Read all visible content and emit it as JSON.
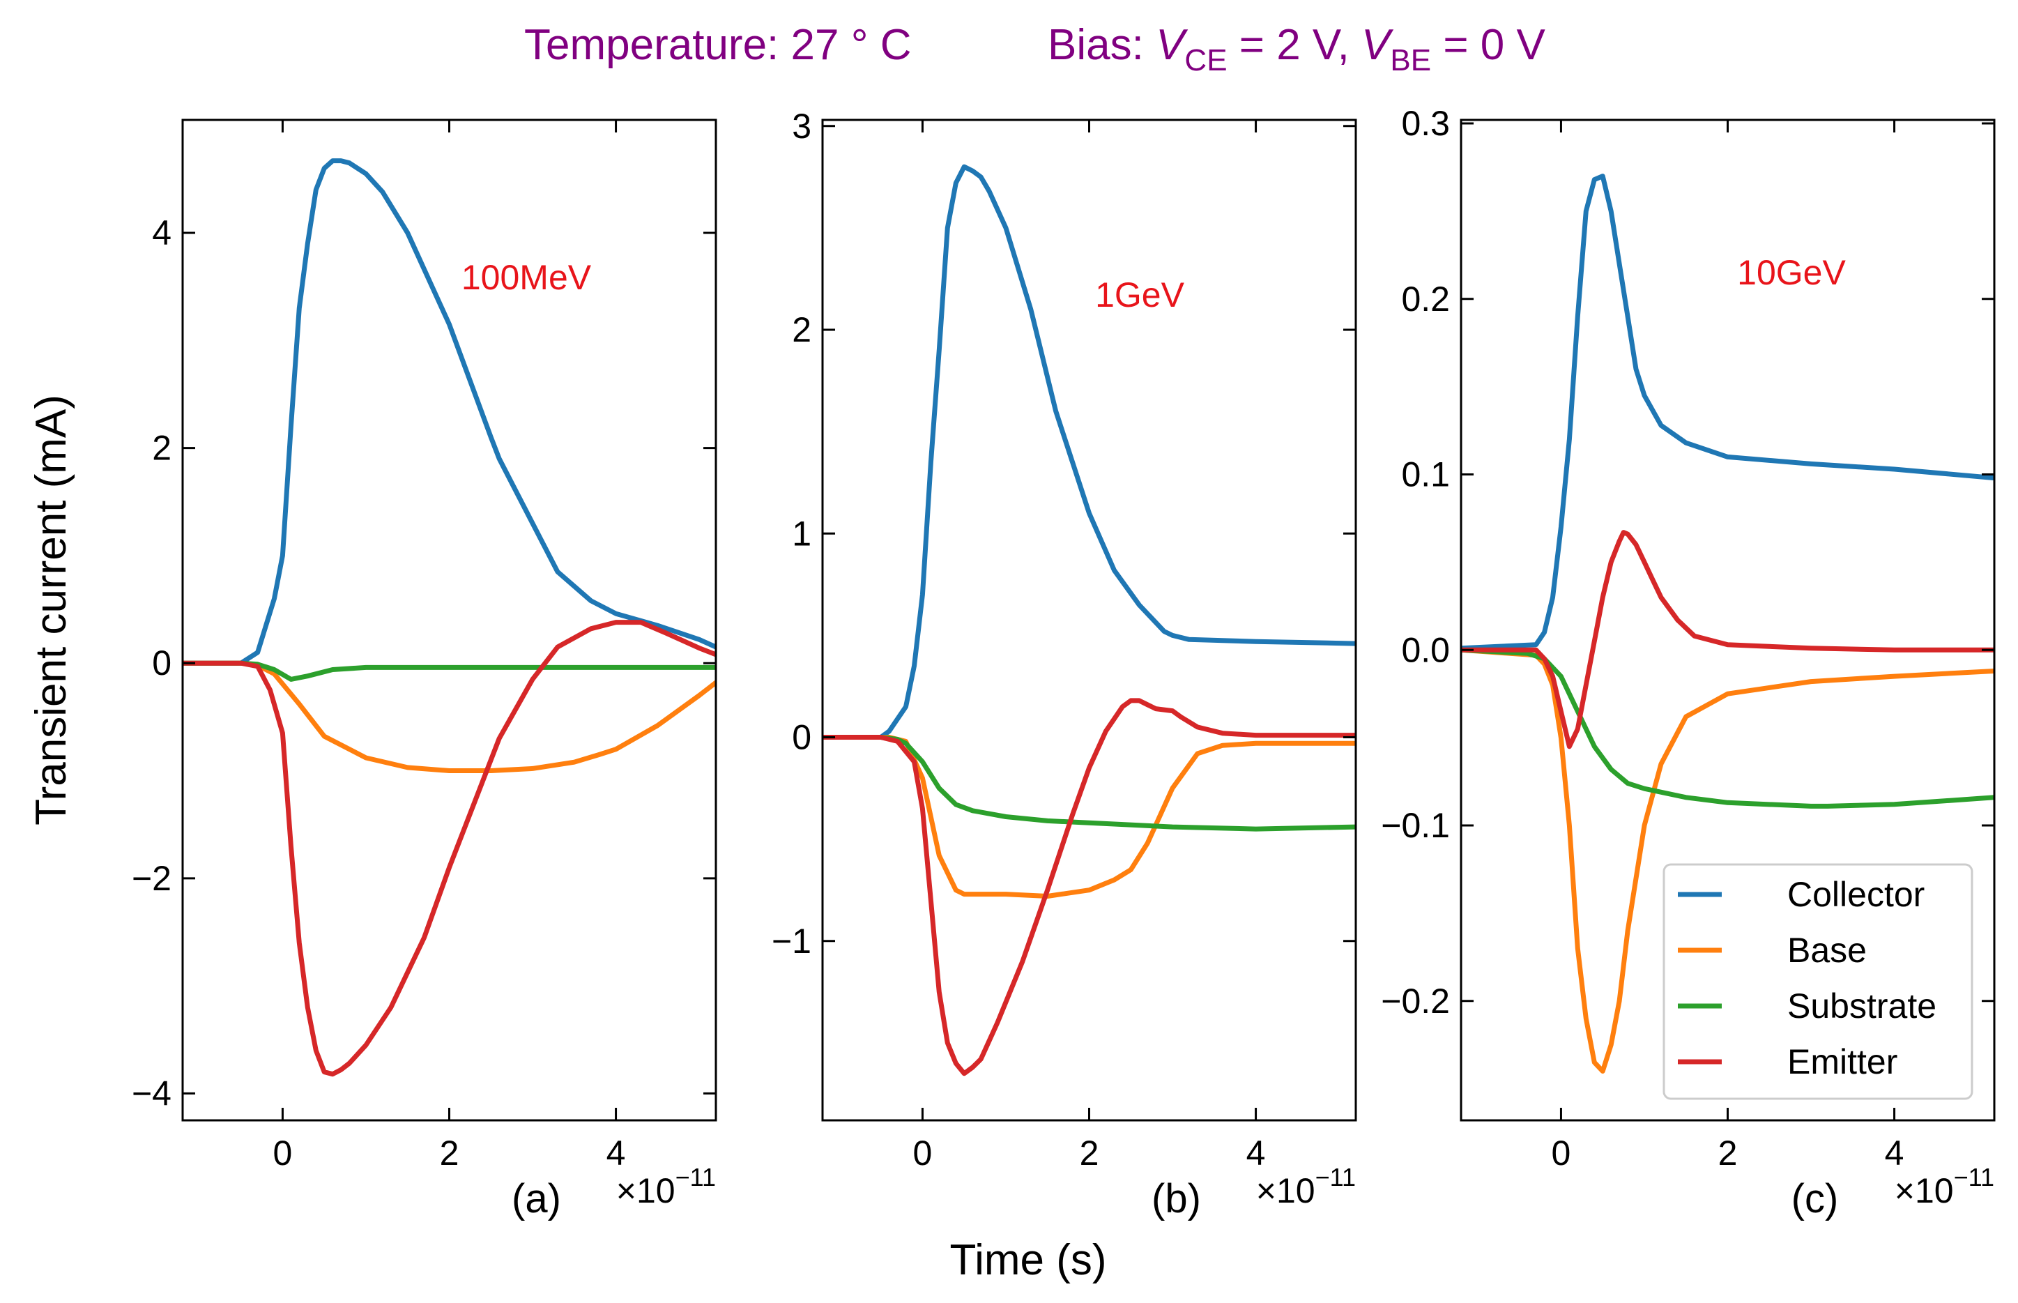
{
  "header": {
    "temp_label": "Temperature: 27 ° C",
    "bias_prefix": "Bias: ",
    "v1": "V",
    "v1_sub": "CE",
    "v1_rest": " = 2 V, ",
    "v2": "V",
    "v2_sub": "BE",
    "v2_rest": " = 0 V"
  },
  "colors": {
    "title": "#800080",
    "annotation": "#e8141a",
    "Collector": "#1f77b4",
    "Base": "#ff7f0e",
    "Substrate": "#2ca02c",
    "Emitter": "#d62728"
  },
  "ylabel": "Transient current (mA)",
  "xlabel": "Time (s)",
  "legend": {
    "entries": [
      "Collector",
      "Base",
      "Substrate",
      "Emitter"
    ]
  },
  "chart_data": [
    {
      "type": "line",
      "panel": "(a)",
      "annotation": "100MeV",
      "x_scale": "×10",
      "x_exp": "−11",
      "xlim": [
        -1.2,
        5.2
      ],
      "ylim": [
        -4.25,
        5.05
      ],
      "xticks": [
        0,
        2,
        4
      ],
      "xtick_labels": [
        "0",
        "2",
        "4"
      ],
      "yticks": [
        -4,
        -2,
        0,
        2,
        4
      ],
      "ytick_labels": [
        "−4",
        "−2",
        "0",
        "2",
        "4"
      ],
      "series": [
        {
          "name": "Collector",
          "x": [
            -1.2,
            -0.5,
            -0.3,
            -0.1,
            0,
            0.1,
            0.2,
            0.3,
            0.4,
            0.5,
            0.6,
            0.7,
            0.8,
            1.0,
            1.2,
            1.5,
            2.0,
            2.5,
            2.6,
            3.0,
            3.3,
            3.7,
            4.0,
            4.5,
            5.0,
            5.2
          ],
          "y": [
            0,
            0,
            0.1,
            0.6,
            1.0,
            2.2,
            3.3,
            3.9,
            4.4,
            4.6,
            4.67,
            4.67,
            4.65,
            4.55,
            4.38,
            4.0,
            3.15,
            2.1,
            1.9,
            1.3,
            0.85,
            0.58,
            0.46,
            0.35,
            0.22,
            0.15
          ]
        },
        {
          "name": "Base",
          "x": [
            -1.2,
            -0.5,
            -0.3,
            -0.1,
            0.2,
            0.5,
            1.0,
            1.5,
            2.0,
            2.5,
            3.0,
            3.5,
            3.8,
            4.0,
            4.5,
            5.0,
            5.2
          ],
          "y": [
            0,
            0,
            -0.02,
            -0.1,
            -0.38,
            -0.68,
            -0.88,
            -0.97,
            -1.0,
            -1.0,
            -0.98,
            -0.92,
            -0.85,
            -0.8,
            -0.58,
            -0.3,
            -0.18
          ]
        },
        {
          "name": "Substrate",
          "x": [
            -1.2,
            -0.5,
            -0.3,
            -0.1,
            0.1,
            0.3,
            0.6,
            1.0,
            2.0,
            3.0,
            4.0,
            5.2
          ],
          "y": [
            0,
            0,
            -0.01,
            -0.06,
            -0.15,
            -0.12,
            -0.06,
            -0.04,
            -0.04,
            -0.04,
            -0.04,
            -0.04
          ]
        },
        {
          "name": "Emitter",
          "x": [
            -1.2,
            -0.5,
            -0.3,
            -0.15,
            0,
            0.1,
            0.2,
            0.3,
            0.4,
            0.5,
            0.6,
            0.7,
            0.8,
            1.0,
            1.3,
            1.7,
            2.0,
            2.6,
            3.0,
            3.3,
            3.7,
            4.0,
            4.3,
            4.6,
            5.0,
            5.2
          ],
          "y": [
            0,
            0,
            -0.03,
            -0.25,
            -0.65,
            -1.7,
            -2.6,
            -3.2,
            -3.6,
            -3.8,
            -3.82,
            -3.78,
            -3.72,
            -3.55,
            -3.2,
            -2.55,
            -1.9,
            -0.7,
            -0.15,
            0.15,
            0.32,
            0.38,
            0.38,
            0.28,
            0.14,
            0.08
          ]
        }
      ]
    },
    {
      "type": "line",
      "panel": "(b)",
      "annotation": "1GeV",
      "x_scale": "×10",
      "x_exp": "−11",
      "xlim": [
        -1.2,
        5.2
      ],
      "ylim": [
        -1.88,
        3.03
      ],
      "xticks": [
        0,
        2,
        4
      ],
      "xtick_labels": [
        "0",
        "2",
        "4"
      ],
      "yticks": [
        -1,
        0,
        1,
        2,
        3
      ],
      "ytick_labels": [
        "−1",
        "0",
        "1",
        "2",
        "3"
      ],
      "series": [
        {
          "name": "Collector",
          "x": [
            -1.2,
            -0.5,
            -0.4,
            -0.2,
            -0.1,
            0,
            0.1,
            0.2,
            0.3,
            0.4,
            0.5,
            0.6,
            0.7,
            0.8,
            1.0,
            1.3,
            1.6,
            2.0,
            2.3,
            2.6,
            2.9,
            3.0,
            3.2,
            4.0,
            5.2
          ],
          "y": [
            0,
            0,
            0.03,
            0.15,
            0.35,
            0.7,
            1.35,
            1.9,
            2.5,
            2.72,
            2.8,
            2.78,
            2.75,
            2.68,
            2.5,
            2.1,
            1.6,
            1.1,
            0.82,
            0.65,
            0.52,
            0.5,
            0.48,
            0.47,
            0.46
          ]
        },
        {
          "name": "Base",
          "x": [
            -1.2,
            -0.4,
            -0.2,
            0,
            0.2,
            0.4,
            0.5,
            0.7,
            1.0,
            1.5,
            2.0,
            2.3,
            2.5,
            2.7,
            3.0,
            3.3,
            3.6,
            4.0,
            5.2
          ],
          "y": [
            0,
            0,
            -0.02,
            -0.2,
            -0.58,
            -0.75,
            -0.77,
            -0.77,
            -0.77,
            -0.78,
            -0.75,
            -0.7,
            -0.65,
            -0.52,
            -0.25,
            -0.08,
            -0.04,
            -0.03,
            -0.03
          ]
        },
        {
          "name": "Substrate",
          "x": [
            -1.2,
            -0.5,
            -0.3,
            -0.2,
            0,
            0.2,
            0.4,
            0.6,
            1.0,
            1.5,
            2.0,
            3.0,
            4.0,
            5.2
          ],
          "y": [
            0,
            0,
            -0.01,
            -0.03,
            -0.12,
            -0.25,
            -0.33,
            -0.36,
            -0.39,
            -0.41,
            -0.42,
            -0.44,
            -0.45,
            -0.44
          ]
        },
        {
          "name": "Emitter",
          "x": [
            -1.2,
            -0.5,
            -0.3,
            -0.1,
            0,
            0.1,
            0.2,
            0.3,
            0.4,
            0.5,
            0.6,
            0.7,
            0.9,
            1.2,
            1.5,
            1.8,
            2.0,
            2.2,
            2.4,
            2.5,
            2.6,
            2.7,
            2.8,
            3.0,
            3.1,
            3.3,
            3.6,
            4.0,
            5.2
          ],
          "y": [
            0,
            0,
            -0.02,
            -0.12,
            -0.35,
            -0.8,
            -1.25,
            -1.5,
            -1.6,
            -1.65,
            -1.62,
            -1.58,
            -1.4,
            -1.1,
            -0.75,
            -0.38,
            -0.15,
            0.03,
            0.15,
            0.18,
            0.18,
            0.16,
            0.14,
            0.13,
            0.1,
            0.05,
            0.02,
            0.01,
            0.01
          ]
        }
      ]
    },
    {
      "type": "line",
      "panel": "(c)",
      "annotation": "10GeV",
      "x_scale": "×10",
      "x_exp": "−11",
      "xlim": [
        -1.2,
        5.2
      ],
      "ylim": [
        -0.268,
        0.302
      ],
      "xticks": [
        0,
        2,
        4
      ],
      "xtick_labels": [
        "0",
        "2",
        "4"
      ],
      "yticks": [
        -0.2,
        -0.1,
        0,
        0.1,
        0.2,
        0.3
      ],
      "ytick_labels": [
        "−0.2",
        "−0.1",
        "0.0",
        "0.1",
        "0.2",
        "0.3"
      ],
      "series": [
        {
          "name": "Collector",
          "x": [
            -1.2,
            -0.3,
            -0.2,
            -0.1,
            0,
            0.1,
            0.2,
            0.3,
            0.4,
            0.5,
            0.6,
            0.7,
            0.8,
            0.9,
            1.0,
            1.2,
            1.5,
            2.0,
            3.0,
            4.0,
            5.2
          ],
          "y": [
            0.001,
            0.003,
            0.01,
            0.03,
            0.07,
            0.12,
            0.19,
            0.25,
            0.268,
            0.27,
            0.25,
            0.22,
            0.19,
            0.16,
            0.145,
            0.128,
            0.118,
            0.11,
            0.106,
            0.103,
            0.098
          ]
        },
        {
          "name": "Base",
          "x": [
            -1.2,
            -0.3,
            -0.2,
            -0.1,
            0,
            0.1,
            0.2,
            0.3,
            0.4,
            0.5,
            0.6,
            0.7,
            0.8,
            1.0,
            1.2,
            1.5,
            2.0,
            3.0,
            4.0,
            5.2
          ],
          "y": [
            0,
            -0.003,
            -0.008,
            -0.02,
            -0.05,
            -0.1,
            -0.17,
            -0.21,
            -0.235,
            -0.24,
            -0.225,
            -0.2,
            -0.16,
            -0.1,
            -0.065,
            -0.038,
            -0.025,
            -0.018,
            -0.015,
            -0.012
          ]
        },
        {
          "name": "Substrate",
          "x": [
            -1.2,
            -0.4,
            -0.2,
            0,
            0.2,
            0.4,
            0.6,
            0.8,
            1.0,
            1.5,
            2.0,
            3.0,
            3.2,
            4.0,
            5.2
          ],
          "y": [
            0,
            -0.002,
            -0.005,
            -0.015,
            -0.035,
            -0.055,
            -0.068,
            -0.076,
            -0.079,
            -0.084,
            -0.087,
            -0.089,
            -0.089,
            -0.088,
            -0.084
          ]
        },
        {
          "name": "Emitter",
          "x": [
            -1.2,
            -0.3,
            -0.2,
            -0.1,
            0,
            0.1,
            0.2,
            0.3,
            0.4,
            0.5,
            0.6,
            0.7,
            0.75,
            0.8,
            0.9,
            1.0,
            1.1,
            1.2,
            1.4,
            1.6,
            2.0,
            3.0,
            4.0,
            5.2
          ],
          "y": [
            0,
            0,
            -0.005,
            -0.015,
            -0.035,
            -0.055,
            -0.045,
            -0.02,
            0.005,
            0.03,
            0.05,
            0.062,
            0.067,
            0.066,
            0.06,
            0.05,
            0.04,
            0.03,
            0.017,
            0.008,
            0.003,
            0.001,
            0,
            0
          ]
        }
      ]
    }
  ]
}
